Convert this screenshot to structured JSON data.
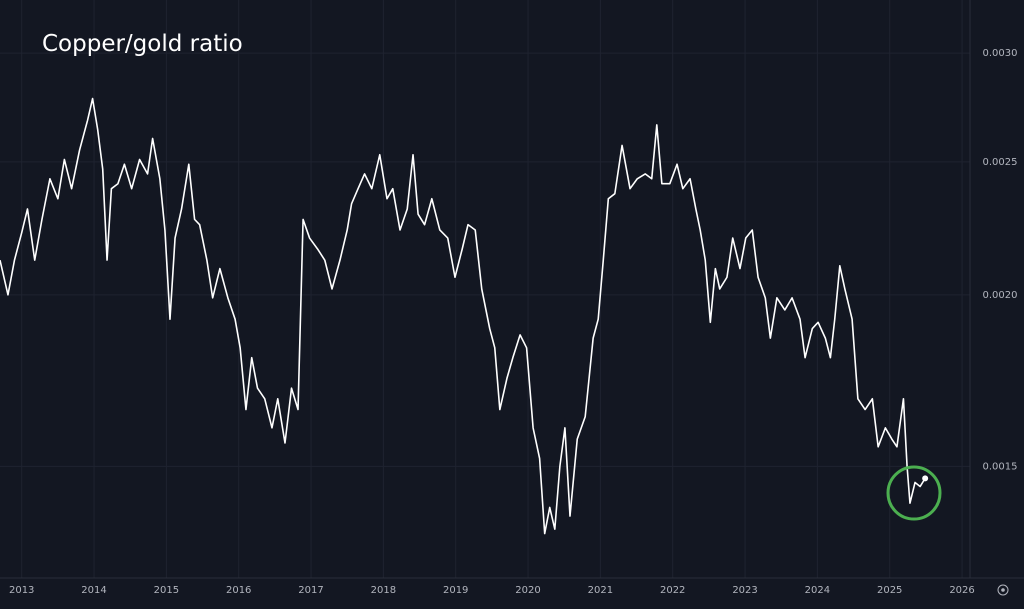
{
  "chart_data": {
    "type": "line",
    "title": "Copper/gold ratio",
    "color": "#ffffff",
    "log_scale": true,
    "grid": true,
    "x": [
      2012.7,
      2012.81,
      2012.9,
      2013.0,
      2013.08,
      2013.18,
      2013.28,
      2013.39,
      2013.5,
      2013.59,
      2013.69,
      2013.8,
      2013.91,
      2013.98,
      2014.05,
      2014.12,
      2014.18,
      2014.24,
      2014.33,
      2014.42,
      2014.52,
      2014.63,
      2014.74,
      2014.81,
      2014.91,
      2014.98,
      2015.05,
      2015.12,
      2015.21,
      2015.31,
      2015.39,
      2015.46,
      2015.56,
      2015.64,
      2015.74,
      2015.85,
      2015.95,
      2016.02,
      2016.1,
      2016.18,
      2016.26,
      2016.36,
      2016.46,
      2016.54,
      2016.64,
      2016.73,
      2016.82,
      2016.89,
      2016.98,
      2017.09,
      2017.19,
      2017.29,
      2017.4,
      2017.5,
      2017.56,
      2017.65,
      2017.74,
      2017.84,
      2017.95,
      2018.05,
      2018.13,
      2018.23,
      2018.33,
      2018.41,
      2018.48,
      2018.57,
      2018.67,
      2018.78,
      2018.89,
      2018.99,
      2019.09,
      2019.17,
      2019.27,
      2019.36,
      2019.47,
      2019.54,
      2019.61,
      2019.71,
      2019.79,
      2019.89,
      2019.98,
      2020.07,
      2020.16,
      2020.23,
      2020.3,
      2020.37,
      2020.44,
      2020.51,
      2020.58,
      2020.68,
      2020.79,
      2020.9,
      2020.97,
      2021.04,
      2021.11,
      2021.2,
      2021.3,
      2021.41,
      2021.51,
      2021.62,
      2021.71,
      2021.78,
      2021.85,
      2021.96,
      2022.06,
      2022.14,
      2022.24,
      2022.32,
      2022.38,
      2022.45,
      2022.52,
      2022.59,
      2022.65,
      2022.75,
      2022.83,
      2022.93,
      2023.01,
      2023.1,
      2023.18,
      2023.28,
      2023.35,
      2023.44,
      2023.55,
      2023.65,
      2023.76,
      2023.83,
      2023.93,
      2024.01,
      2024.11,
      2024.18,
      2024.24,
      2024.31,
      2024.38,
      2024.48,
      2024.56,
      2024.66,
      2024.76,
      2024.84,
      2024.94,
      2025.03,
      2025.1,
      2025.19,
      2025.24,
      2025.28,
      2025.35,
      2025.42,
      2025.49
    ],
    "values": [
      0.00212,
      0.002,
      0.00212,
      0.00222,
      0.00231,
      0.00212,
      0.00227,
      0.00243,
      0.00235,
      0.00251,
      0.00239,
      0.00255,
      0.00268,
      0.00278,
      0.00264,
      0.00247,
      0.00212,
      0.00239,
      0.00241,
      0.00249,
      0.00239,
      0.00251,
      0.00245,
      0.0026,
      0.00243,
      0.00223,
      0.00192,
      0.0022,
      0.00231,
      0.00249,
      0.00227,
      0.00225,
      0.00212,
      0.00199,
      0.00209,
      0.00199,
      0.00192,
      0.00183,
      0.00165,
      0.0018,
      0.00171,
      0.00168,
      0.0016,
      0.00168,
      0.00156,
      0.00171,
      0.00165,
      0.00227,
      0.0022,
      0.00216,
      0.00212,
      0.00202,
      0.00212,
      0.00223,
      0.00233,
      0.00239,
      0.00245,
      0.00239,
      0.00253,
      0.00235,
      0.00239,
      0.00223,
      0.00231,
      0.00253,
      0.00229,
      0.00225,
      0.00235,
      0.00223,
      0.0022,
      0.00206,
      0.00216,
      0.00225,
      0.00223,
      0.00202,
      0.00189,
      0.00183,
      0.00165,
      0.00174,
      0.0018,
      0.00187,
      0.00183,
      0.0016,
      0.00152,
      0.00134,
      0.0014,
      0.00135,
      0.0015,
      0.0016,
      0.00138,
      0.00157,
      0.00163,
      0.00186,
      0.00192,
      0.00212,
      0.00235,
      0.00237,
      0.00257,
      0.00239,
      0.00243,
      0.00245,
      0.00243,
      0.00266,
      0.00241,
      0.00241,
      0.00249,
      0.00239,
      0.00243,
      0.00231,
      0.00223,
      0.00212,
      0.00191,
      0.00209,
      0.00202,
      0.00206,
      0.0022,
      0.00209,
      0.0022,
      0.00223,
      0.00206,
      0.00199,
      0.00186,
      0.00199,
      0.00195,
      0.00199,
      0.00192,
      0.0018,
      0.00189,
      0.00191,
      0.00186,
      0.0018,
      0.00192,
      0.0021,
      0.00202,
      0.00192,
      0.00168,
      0.00165,
      0.00168,
      0.00155,
      0.0016,
      0.00157,
      0.00155,
      0.00168,
      0.0015,
      0.00141,
      0.00146,
      0.00145,
      0.00147
    ],
    "xlim": [
      2012.7,
      2026.11
    ],
    "xticks": [
      2013,
      2014,
      2015,
      2016,
      2017,
      2018,
      2019,
      2020,
      2021,
      2022,
      2023,
      2024,
      2025,
      2026
    ],
    "ylim": [
      0.00125,
      0.00328
    ],
    "yticks": [
      {
        "value": 0.0015,
        "label": "0.0015"
      },
      {
        "value": 0.002,
        "label": "0.0020"
      },
      {
        "value": 0.0025,
        "label": "0.0025"
      },
      {
        "value": 0.003,
        "label": "0.0030"
      }
    ]
  }
}
